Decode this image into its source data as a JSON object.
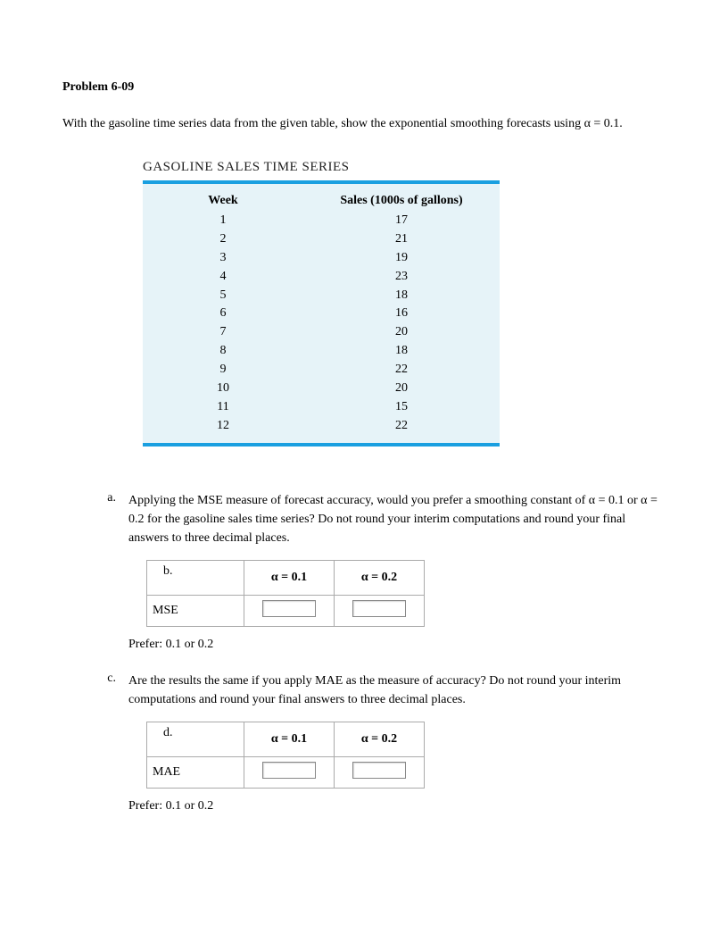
{
  "title": "Problem 6-09",
  "statement": "With the gasoline time series data from the given table, show the exponential smoothing forecasts using α = 0.1.",
  "gasoline": {
    "title": "GASOLINE SALES TIME SERIES",
    "header_week": "Week",
    "header_sales": "Sales (1000s of gallons)",
    "rows": [
      {
        "week": "1",
        "sales": "17"
      },
      {
        "week": "2",
        "sales": "21"
      },
      {
        "week": "3",
        "sales": "19"
      },
      {
        "week": "4",
        "sales": "23"
      },
      {
        "week": "5",
        "sales": "18"
      },
      {
        "week": "6",
        "sales": "16"
      },
      {
        "week": "7",
        "sales": "20"
      },
      {
        "week": "8",
        "sales": "18"
      },
      {
        "week": "9",
        "sales": "22"
      },
      {
        "week": "10",
        "sales": "20"
      },
      {
        "week": "11",
        "sales": "15"
      },
      {
        "week": "12",
        "sales": "22"
      }
    ],
    "colors": {
      "border": "#1a9fe0",
      "background": "#e6f3f8"
    }
  },
  "part_a": {
    "marker": "a.",
    "text": "Applying the MSE measure of forecast accuracy, would you prefer a smoothing constant of α = 0.1 or α = 0.2 for the gasoline sales time series? Do not round your interim computations and round your final answers to three decimal places.",
    "table": {
      "corner": "b.",
      "col1": "α = 0.1",
      "col2": "α = 0.2",
      "row_label": "MSE"
    },
    "prefer": "Prefer:  0.1 or 0.2"
  },
  "part_c": {
    "marker": "c.",
    "text": "Are the results the same if you apply MAE as the measure of accuracy? Do not round your interim computations and round your final answers to three decimal places.",
    "table": {
      "corner": "d.",
      "col1": "α = 0.1",
      "col2": "α = 0.2",
      "row_label": "MAE"
    },
    "prefer": "Prefer:  0.1 or 0.2"
  }
}
